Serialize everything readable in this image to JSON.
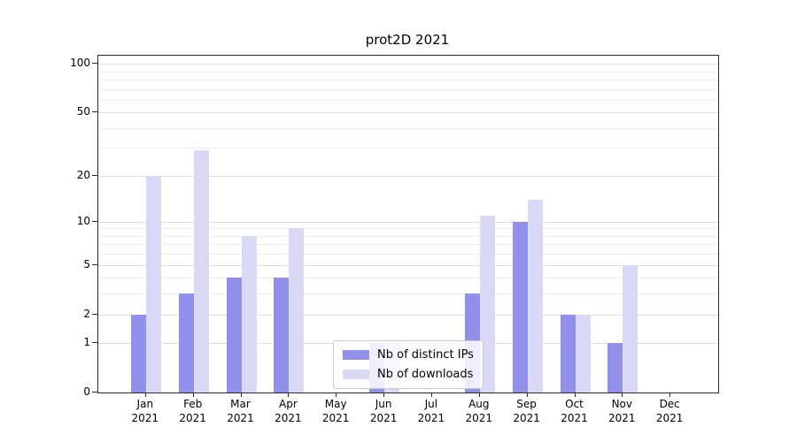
{
  "chart_data": {
    "type": "bar",
    "title": "prot2D 2021",
    "categories": [
      "Jan",
      "Feb",
      "Mar",
      "Apr",
      "May",
      "Jun",
      "Jul",
      "Aug",
      "Sep",
      "Oct",
      "Nov",
      "Dec"
    ],
    "category_year": "2021",
    "series": [
      {
        "name": "Nb of distinct IPs",
        "color": "#9191ec",
        "values": [
          2,
          3,
          4,
          4,
          0,
          1,
          0,
          3,
          10,
          2,
          1,
          0
        ]
      },
      {
        "name": "Nb of downloads",
        "color": "#d9d9f6",
        "values": [
          20,
          29,
          8,
          9,
          0,
          1,
          0,
          11,
          14,
          2,
          5,
          0
        ]
      }
    ],
    "yticks": [
      0,
      1,
      2,
      5,
      10,
      20,
      50,
      100
    ],
    "minor_gridlines": [
      3,
      4,
      6,
      7,
      8,
      9,
      30,
      40,
      60,
      70,
      80,
      90
    ],
    "scale": "log1p",
    "ylim": [
      0,
      112
    ],
    "xlabel": "",
    "ylabel": "",
    "grid": "on",
    "legend_position": "lower-center"
  }
}
